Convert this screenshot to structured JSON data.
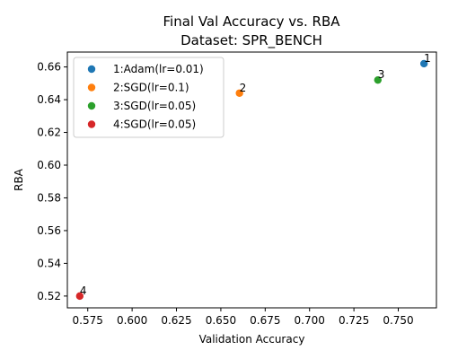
{
  "chart_data": {
    "type": "scatter",
    "title_line1": "Final Val Accuracy vs. RBA",
    "title_line2": "Dataset: SPR_BENCH",
    "xlabel": "Validation Accuracy",
    "ylabel": "RBA",
    "xlim": [
      0.5635,
      0.7715
    ],
    "ylim": [
      0.5128,
      0.6691
    ],
    "x_ticks": [
      0.575,
      0.6,
      0.625,
      0.65,
      0.675,
      0.7,
      0.725,
      0.75
    ],
    "x_tick_labels": [
      "0.575",
      "0.600",
      "0.625",
      "0.650",
      "0.675",
      "0.700",
      "0.725",
      "0.750"
    ],
    "y_ticks": [
      0.52,
      0.54,
      0.56,
      0.58,
      0.6,
      0.62,
      0.64,
      0.66
    ],
    "y_tick_labels": [
      "0.52",
      "0.54",
      "0.56",
      "0.58",
      "0.60",
      "0.62",
      "0.64",
      "0.66"
    ],
    "grid": false,
    "legend_position": "top-left",
    "series": [
      {
        "name": "1:Adam(lr=0.01)",
        "point_label": "1",
        "x": 0.7645,
        "y": 0.662,
        "color": "#1f77b4"
      },
      {
        "name": "2:SGD(lr=0.1)",
        "point_label": "2",
        "x": 0.6605,
        "y": 0.644,
        "color": "#ff7f0e"
      },
      {
        "name": "3:SGD(lr=0.05)",
        "point_label": "3",
        "x": 0.7385,
        "y": 0.652,
        "color": "#2ca02c"
      },
      {
        "name": "4:SGD(lr=0.05)",
        "point_label": "4",
        "x": 0.5705,
        "y": 0.52,
        "color": "#d62728"
      }
    ]
  }
}
